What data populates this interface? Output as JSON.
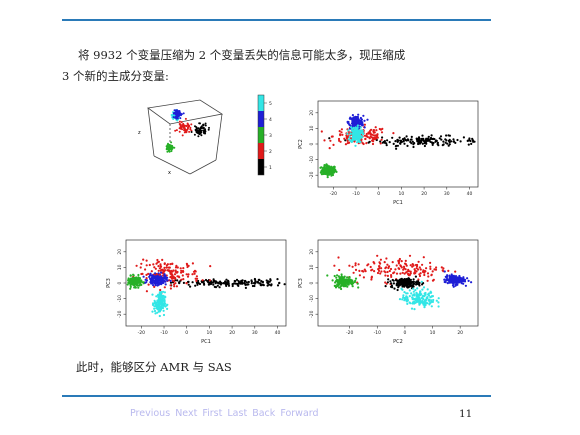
{
  "text": {
    "line1": "将 9932 个变量压缩为 2 个变量丢失的信息可能太多，现压缩成",
    "line2": "3 个新的主成分变量:",
    "conclusion": "此时，能够区分 AMR 与 SAS"
  },
  "footer": {
    "nav": [
      "Previous",
      "Next",
      "First",
      "Last",
      "Back",
      "Forward"
    ],
    "page": "11"
  },
  "colors": {
    "rule": "#2a7ab8",
    "nav": "#b9b9ee"
  },
  "legend": {
    "ticks": [
      "5",
      "4",
      "3",
      "2",
      "1"
    ],
    "colors": [
      "#33e6e6",
      "#1f1fd6",
      "#27b027",
      "#e01a1a",
      "#000000"
    ]
  },
  "chart_data": [
    {
      "type": "scatter",
      "panel": "3d",
      "xlabel": "x",
      "ylabel": "z",
      "series": [
        {
          "color": "#33e6e6",
          "x": [
            -8,
            -6
          ],
          "y": [
            4,
            6
          ]
        },
        {
          "color": "#1f1fd6",
          "x": [
            -9,
            -7
          ],
          "y": [
            10,
            12
          ]
        },
        {
          "color": "#27b027",
          "x": [
            -22,
            -20
          ],
          "y": [
            -12,
            -10
          ]
        },
        {
          "color": "#e01a1a",
          "x": [
            -5,
            0
          ],
          "y": [
            2,
            4
          ]
        },
        {
          "color": "#000000",
          "x": [
            15,
            25
          ],
          "y": [
            -2,
            0
          ]
        }
      ]
    },
    {
      "type": "scatter",
      "xlabel": "PC1",
      "ylabel": "PC2",
      "xlim": [
        -25,
        42
      ],
      "ylim": [
        -25,
        25
      ],
      "xticks": [
        "-20",
        "-10",
        "0",
        "10",
        "20",
        "30",
        "40"
      ],
      "yticks": [
        "-20",
        "-10",
        "0",
        "10",
        "20"
      ],
      "clusters": [
        {
          "color": "#27b027",
          "cx": -22,
          "cy": -17,
          "sx": 1.6,
          "sy": 1.6
        },
        {
          "color": "#000000",
          "cx": 20,
          "cy": 2,
          "sx": 12,
          "sy": 1.5
        },
        {
          "color": "#e01a1a",
          "cx": -8,
          "cy": 5,
          "sx": 6,
          "sy": 3
        },
        {
          "color": "#1f1fd6",
          "cx": -10,
          "cy": 14,
          "sx": 1.6,
          "sy": 2.0
        },
        {
          "color": "#33e6e6",
          "cx": -10,
          "cy": 6,
          "sx": 1.3,
          "sy": 2.5
        }
      ]
    },
    {
      "type": "scatter",
      "xlabel": "PC1",
      "ylabel": "PC3",
      "xlim": [
        -25,
        42
      ],
      "ylim": [
        -25,
        25
      ],
      "xticks": [
        "-20",
        "-10",
        "0",
        "10",
        "20",
        "30",
        "40"
      ],
      "yticks": [
        "-20",
        "-10",
        "0",
        "10",
        "20"
      ],
      "clusters": [
        {
          "color": "#000000",
          "cx": 20,
          "cy": 0,
          "sx": 12,
          "sy": 1.2
        },
        {
          "color": "#e01a1a",
          "cx": -8,
          "cy": 6,
          "sx": 7,
          "sy": 4
        },
        {
          "color": "#27b027",
          "cx": -23,
          "cy": 1,
          "sx": 1.5,
          "sy": 1.6
        },
        {
          "color": "#1f1fd6",
          "cx": -13,
          "cy": 2,
          "sx": 2.0,
          "sy": 1.6
        },
        {
          "color": "#33e6e6",
          "cx": -12,
          "cy": -13,
          "sx": 1.2,
          "sy": 3.5
        }
      ]
    },
    {
      "type": "scatter",
      "xlabel": "PC2",
      "ylabel": "PC3",
      "xlim": [
        -30,
        25
      ],
      "ylim": [
        -25,
        25
      ],
      "xticks": [
        "-20",
        "-10",
        "0",
        "10",
        "20"
      ],
      "yticks": [
        "-20",
        "-10",
        "0",
        "10",
        "20"
      ],
      "clusters": [
        {
          "color": "#e01a1a",
          "cx": -2,
          "cy": 9,
          "sx": 9,
          "sy": 4
        },
        {
          "color": "#27b027",
          "cx": -22,
          "cy": 1,
          "sx": 1.8,
          "sy": 1.8
        },
        {
          "color": "#000000",
          "cx": 0,
          "cy": 0,
          "sx": 2.5,
          "sy": 1.5
        },
        {
          "color": "#1f1fd6",
          "cx": 18,
          "cy": 2,
          "sx": 1.8,
          "sy": 1.5
        },
        {
          "color": "#33e6e6",
          "cx": 5,
          "cy": -10,
          "sx": 3,
          "sy": 3
        }
      ]
    }
  ]
}
